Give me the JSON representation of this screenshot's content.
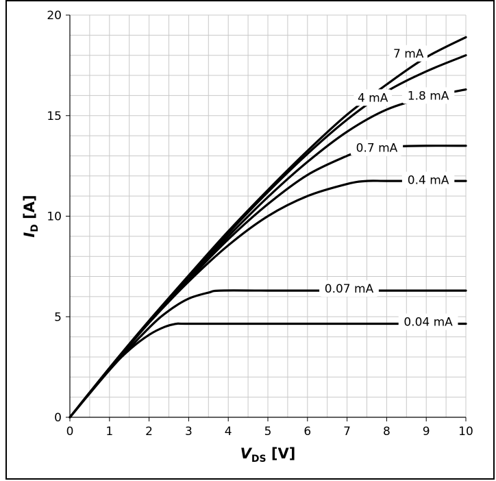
{
  "chart_data": {
    "type": "line",
    "xlabel": {
      "main": "V",
      "sub": "DS",
      "unit": "[V]"
    },
    "ylabel": {
      "main": "I",
      "sub": "D",
      "unit": "[A]"
    },
    "xlim": [
      0,
      10
    ],
    "ylim": [
      0,
      20
    ],
    "x_ticks": [
      0,
      1,
      2,
      3,
      4,
      5,
      6,
      7,
      8,
      9,
      10
    ],
    "y_ticks": [
      0,
      5,
      10,
      15,
      20
    ],
    "grid": true,
    "line_color": "#000000",
    "grid_color": "#c8c8c8",
    "series": [
      {
        "label": "7 mA",
        "label_at": [
          8.55,
          18.1
        ],
        "points": [
          [
            0,
            0
          ],
          [
            1,
            2.45
          ],
          [
            2,
            4.8
          ],
          [
            3,
            7.05
          ],
          [
            4,
            9.25
          ],
          [
            5,
            11.3
          ],
          [
            6,
            13.25
          ],
          [
            7,
            15.05
          ],
          [
            8,
            16.55
          ],
          [
            9,
            17.9
          ],
          [
            10,
            18.9
          ]
        ]
      },
      {
        "label": "4 mA",
        "label_at": [
          7.65,
          15.9
        ],
        "points": [
          [
            0,
            0
          ],
          [
            1,
            2.45
          ],
          [
            2,
            4.8
          ],
          [
            3,
            7.0
          ],
          [
            4,
            9.15
          ],
          [
            5,
            11.2
          ],
          [
            6,
            13.1
          ],
          [
            7,
            14.8
          ],
          [
            8,
            16.2
          ],
          [
            9,
            17.2
          ],
          [
            10,
            18.0
          ]
        ]
      },
      {
        "label": "1.8 mA",
        "label_at": [
          9.05,
          16.0
        ],
        "points": [
          [
            0,
            0
          ],
          [
            1,
            2.45
          ],
          [
            2,
            4.8
          ],
          [
            3,
            6.95
          ],
          [
            4,
            9.0
          ],
          [
            5,
            10.95
          ],
          [
            6,
            12.7
          ],
          [
            7,
            14.2
          ],
          [
            8,
            15.3
          ],
          [
            9,
            15.9
          ],
          [
            10,
            16.3
          ]
        ]
      },
      {
        "label": "0.7 mA",
        "label_at": [
          7.75,
          13.4
        ],
        "points": [
          [
            0,
            0
          ],
          [
            1,
            2.4
          ],
          [
            2,
            4.75
          ],
          [
            3,
            6.85
          ],
          [
            4,
            8.85
          ],
          [
            5,
            10.6
          ],
          [
            6,
            12.05
          ],
          [
            7,
            13.0
          ],
          [
            7.5,
            13.35
          ],
          [
            8,
            13.45
          ],
          [
            9,
            13.5
          ],
          [
            10,
            13.5
          ]
        ]
      },
      {
        "label": "0.4 mA",
        "label_at": [
          9.05,
          11.8
        ],
        "points": [
          [
            0,
            0
          ],
          [
            1,
            2.4
          ],
          [
            2,
            4.7
          ],
          [
            3,
            6.75
          ],
          [
            4,
            8.55
          ],
          [
            5,
            10.0
          ],
          [
            6,
            11.0
          ],
          [
            7,
            11.6
          ],
          [
            7.5,
            11.75
          ],
          [
            8,
            11.75
          ],
          [
            9,
            11.75
          ],
          [
            10,
            11.75
          ]
        ]
      },
      {
        "label": "0.07 mA",
        "label_at": [
          7.05,
          6.4
        ],
        "points": [
          [
            0,
            0
          ],
          [
            1,
            2.35
          ],
          [
            2,
            4.45
          ],
          [
            2.5,
            5.3
          ],
          [
            3,
            5.9
          ],
          [
            3.5,
            6.2
          ],
          [
            3.8,
            6.3
          ],
          [
            5,
            6.3
          ],
          [
            7,
            6.3
          ],
          [
            10,
            6.3
          ]
        ]
      },
      {
        "label": "0.04 mA",
        "label_at": [
          9.05,
          4.75
        ],
        "points": [
          [
            0,
            0
          ],
          [
            1,
            2.35
          ],
          [
            1.5,
            3.35
          ],
          [
            2,
            4.1
          ],
          [
            2.4,
            4.5
          ],
          [
            2.7,
            4.65
          ],
          [
            3,
            4.65
          ],
          [
            5,
            4.65
          ],
          [
            8,
            4.65
          ],
          [
            10,
            4.65
          ]
        ]
      }
    ]
  }
}
